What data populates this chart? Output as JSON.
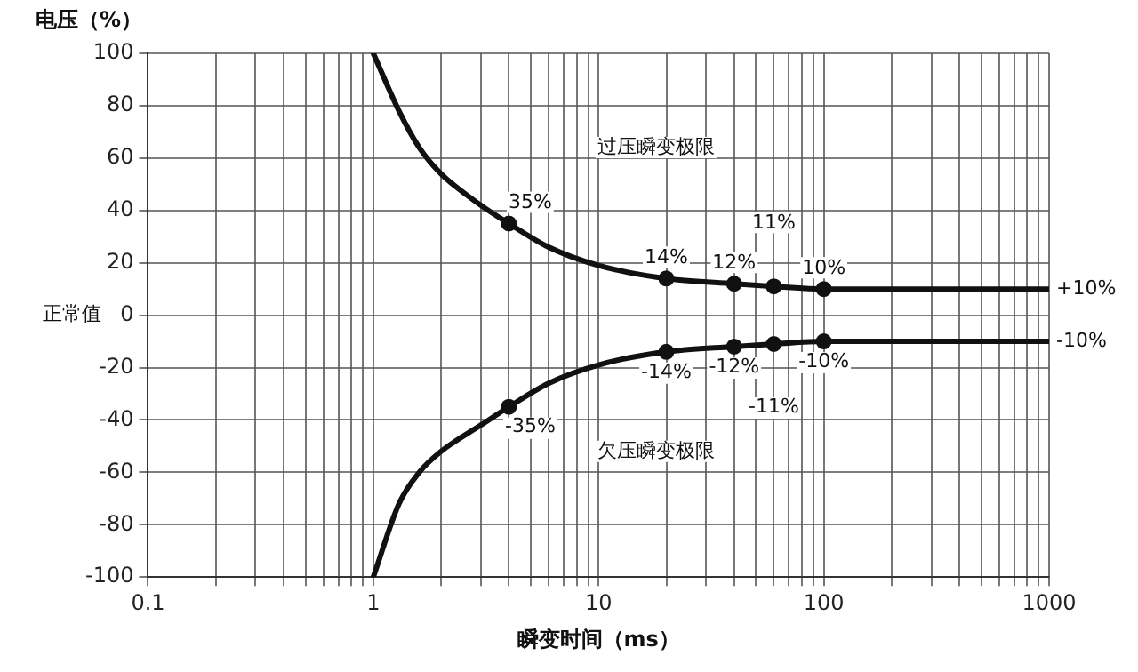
{
  "chart_data": {
    "type": "line",
    "xlabel": "瞬变时间（ms）",
    "ylabel": "电压（%）",
    "log": "x",
    "xlim": [
      0.1,
      1000
    ],
    "xticks": [
      0.1,
      {
        "value": 0.2,
        "label": null
      },
      {
        "value": 0.3,
        "label": null
      },
      {
        "value": 0.4,
        "label": null
      },
      {
        "value": 0.5,
        "label": null
      },
      {
        "value": 0.6,
        "label": null
      },
      {
        "value": 0.7,
        "label": null
      },
      {
        "value": 0.8,
        "label": null
      },
      {
        "value": 0.9,
        "label": null
      },
      1,
      {
        "value": 2,
        "label": null
      },
      {
        "value": 3,
        "label": null
      },
      {
        "value": 4,
        "label": null
      },
      {
        "value": 5,
        "label": null
      },
      {
        "value": 6,
        "label": null
      },
      {
        "value": 7,
        "label": null
      },
      {
        "value": 8,
        "label": null
      },
      {
        "value": 9,
        "label": null
      },
      10,
      {
        "value": 20,
        "label": null
      },
      {
        "value": 30,
        "label": null
      },
      {
        "value": 40,
        "label": null
      },
      {
        "value": 50,
        "label": null
      },
      {
        "value": 60,
        "label": null
      },
      {
        "value": 70,
        "label": null
      },
      {
        "value": 80,
        "label": null
      },
      {
        "value": 90,
        "label": null
      },
      100,
      {
        "value": 200,
        "label": null
      },
      {
        "value": 300,
        "label": null
      },
      {
        "value": 400,
        "label": null
      },
      {
        "value": 500,
        "label": null
      },
      {
        "value": 600,
        "label": null
      },
      {
        "value": 700,
        "label": null
      },
      {
        "value": 800,
        "label": null
      },
      {
        "value": 900,
        "label": null
      },
      1000
    ],
    "ylim": [
      -100,
      100
    ],
    "yticks": [
      -100,
      -80,
      -60,
      -40,
      -20,
      0,
      20,
      40,
      60,
      80,
      100
    ],
    "grid": true,
    "legend": false,
    "series": [
      {
        "type": "line",
        "color": "#111111",
        "marker": "none",
        "x": [
          1,
          1.3,
          1.6,
          2,
          3,
          4,
          6,
          10,
          20,
          40,
          60,
          100,
          1000
        ],
        "values": [
          100,
          78,
          64,
          54,
          42,
          35,
          26,
          19,
          14,
          12,
          11,
          10,
          10
        ]
      },
      {
        "type": "line",
        "color": "#111111",
        "marker": "none",
        "x": [
          1,
          1.3,
          1.6,
          2,
          3,
          4,
          6,
          10,
          20,
          40,
          60,
          100,
          1000
        ],
        "values": [
          -100,
          -72,
          -60,
          -52,
          -42,
          -35,
          -26,
          -19,
          -14,
          -12,
          -11,
          -10,
          -10
        ]
      },
      {
        "type": "scatter",
        "color": "#111111",
        "marker": "circle",
        "x": [
          4,
          20,
          40,
          60,
          100,
          4,
          20,
          40,
          60,
          100
        ],
        "values": [
          35,
          14,
          12,
          11,
          10,
          -35,
          -14,
          -12,
          -11,
          -10
        ]
      }
    ],
    "annotations": [
      {
        "text": "35%",
        "x": 4,
        "y": 35
      },
      {
        "text": "14%",
        "x": 20,
        "y": 14
      },
      {
        "text": "12%",
        "x": 40,
        "y": 12
      },
      {
        "text": "11%",
        "x": 60,
        "y": 11
      },
      {
        "text": "10%",
        "x": 100,
        "y": 10
      },
      {
        "text": "-35%",
        "x": 4,
        "y": -35
      },
      {
        "text": "-14%",
        "x": 20,
        "y": -14
      },
      {
        "text": "-12%",
        "x": 40,
        "y": -12
      },
      {
        "text": "-11%",
        "x": 60,
        "y": -11
      },
      {
        "text": "-10%",
        "x": 100,
        "y": -10
      },
      {
        "text": "+10%",
        "x": 1000,
        "y": 10
      },
      {
        "text": "-10%",
        "x": 1000,
        "y": -10
      },
      "过压瞬变极限",
      "欠压瞬变极限",
      "正常值"
    ]
  }
}
